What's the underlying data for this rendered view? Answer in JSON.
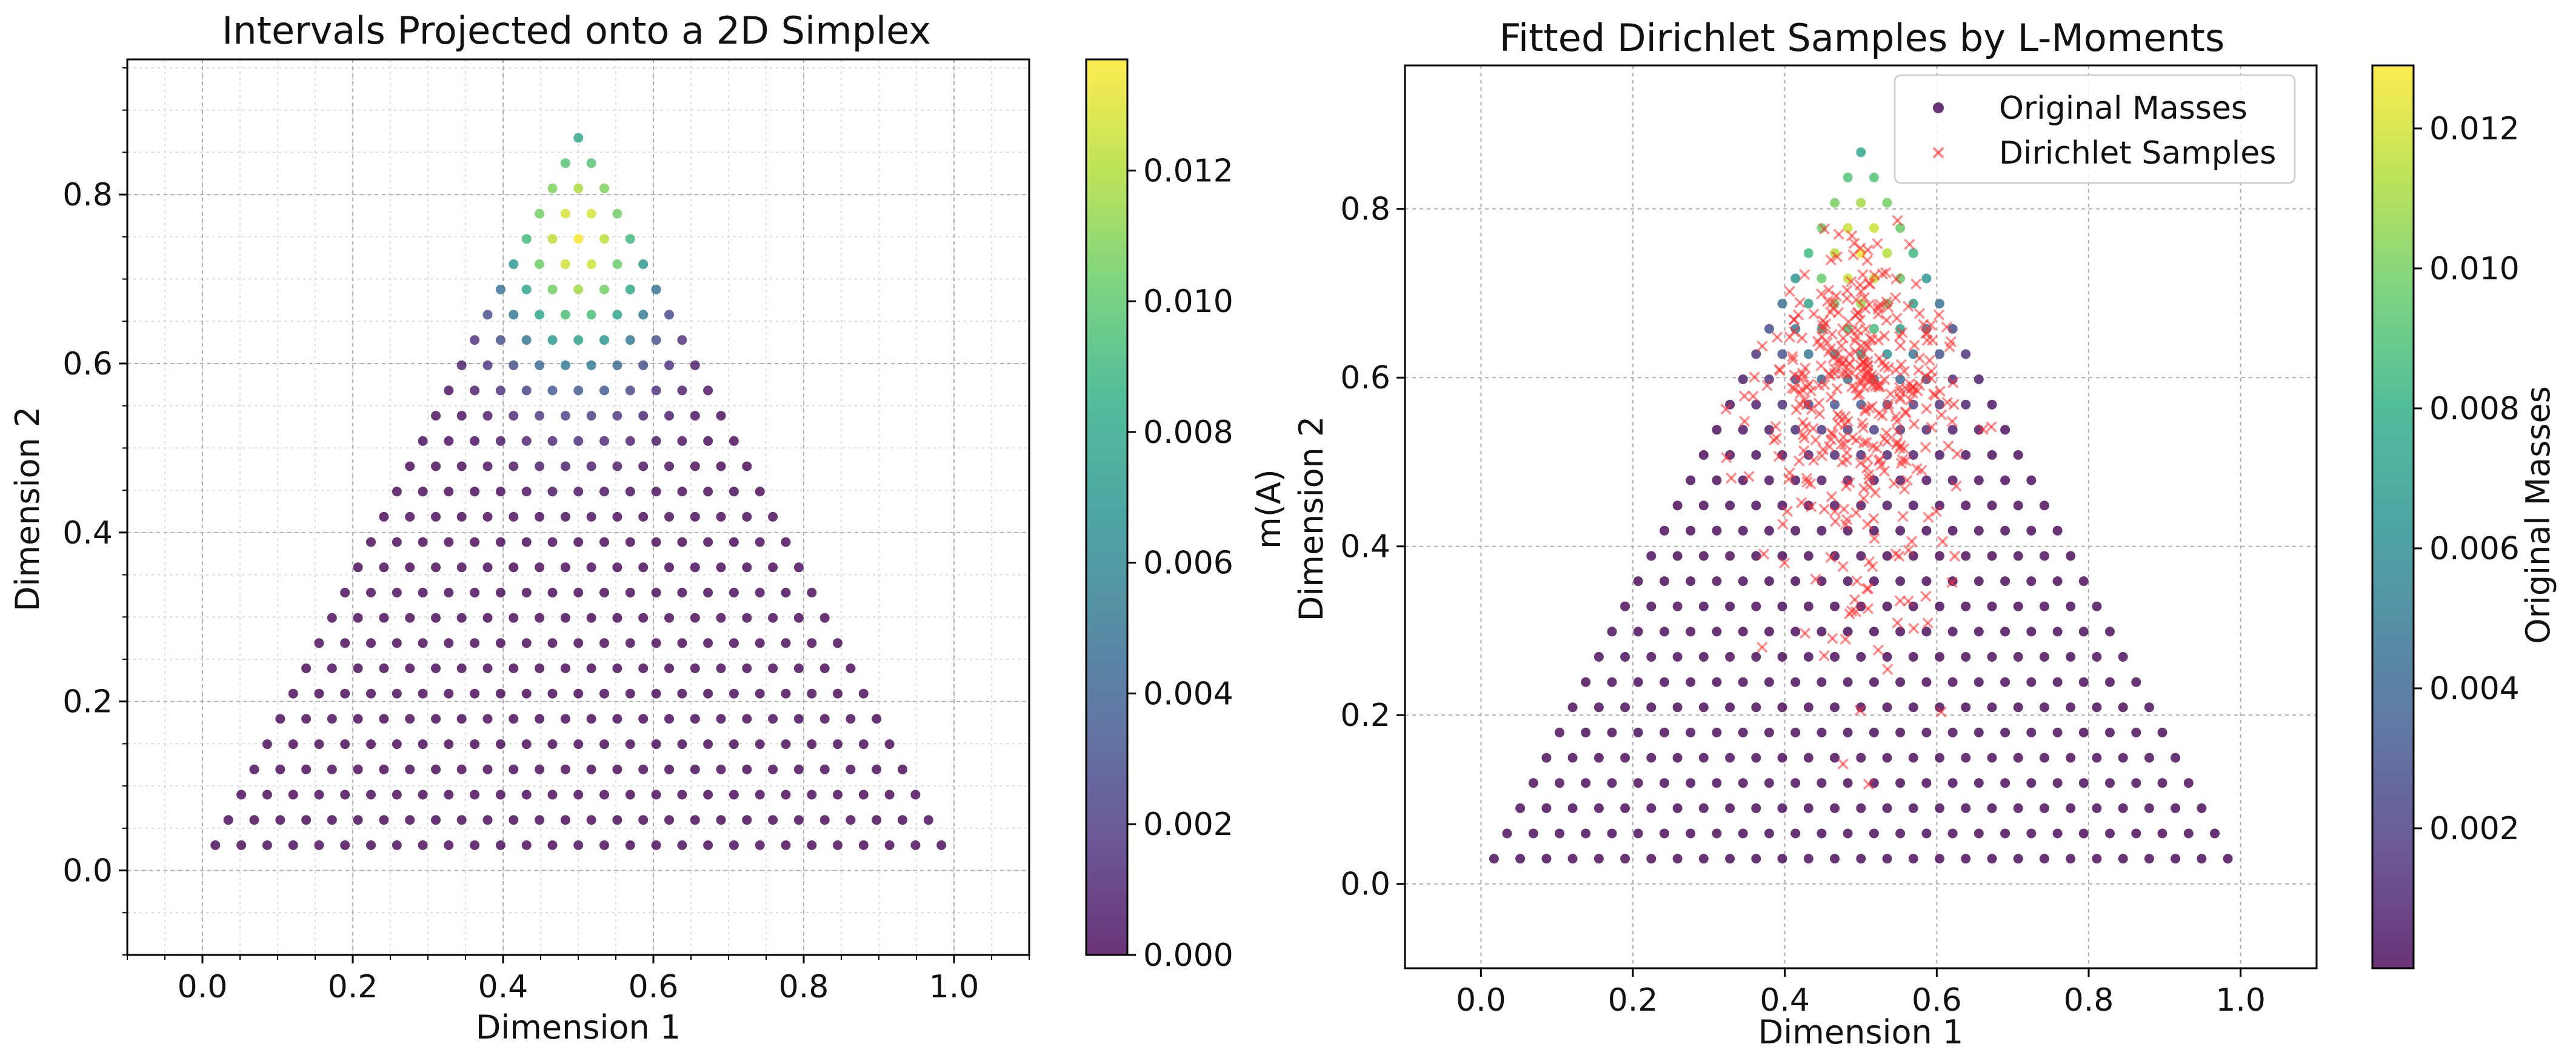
{
  "chart_data": [
    {
      "type": "scatter",
      "title": "Intervals Projected onto a 2D Simplex",
      "xlabel": "Dimension 1",
      "ylabel": "Dimension 2",
      "xlim": [
        -0.1,
        1.1
      ],
      "ylim": [
        -0.1,
        0.96
      ],
      "xticks": [
        0.0,
        0.2,
        0.4,
        0.6,
        0.8,
        1.0
      ],
      "xtick_labels": [
        "0.0",
        "0.2",
        "0.4",
        "0.6",
        "0.8",
        "1.0"
      ],
      "yticks": [
        0.0,
        0.2,
        0.4,
        0.6,
        0.8
      ],
      "ytick_labels": [
        "0.0",
        "0.2",
        "0.4",
        "0.6",
        "0.8"
      ],
      "grid": true,
      "minor_grid": true,
      "series": [
        {
          "name": "m(A)",
          "grid_rows": 29,
          "x_start": 0.0172,
          "x_step": 0.0345,
          "y_start": 0.0299,
          "y_step": 0.0299,
          "color_value_peak": 0.0135,
          "color_value_apex": [
            0.5,
            0.75
          ]
        }
      ],
      "colorbar": {
        "label": "m(A)",
        "min": 0.0,
        "max": 0.0137,
        "ticks": [
          0.0,
          0.002,
          0.004,
          0.006,
          0.008,
          0.01,
          0.012
        ],
        "tick_labels": [
          "0.000",
          "0.002",
          "0.004",
          "0.006",
          "0.008",
          "0.010",
          "0.012"
        ]
      }
    },
    {
      "type": "scatter",
      "title": "Fitted Dirichlet Samples by L-Moments",
      "xlabel": "Dimension 1",
      "ylabel": "Dimension 2",
      "xlim": [
        -0.1,
        1.1
      ],
      "ylim": [
        -0.1,
        0.97
      ],
      "xticks": [
        0.0,
        0.2,
        0.4,
        0.6,
        0.8,
        1.0
      ],
      "xtick_labels": [
        "0.0",
        "0.2",
        "0.4",
        "0.6",
        "0.8",
        "1.0"
      ],
      "yticks": [
        0.0,
        0.2,
        0.4,
        0.6,
        0.8
      ],
      "ytick_labels": [
        "0.0",
        "0.2",
        "0.4",
        "0.6",
        "0.8"
      ],
      "grid": true,
      "legend": {
        "position": "top-right",
        "entries": [
          "Original Masses",
          "Dirichlet Samples"
        ]
      },
      "series": [
        {
          "name": "Original Masses",
          "grid_rows": 29,
          "x_start": 0.0172,
          "x_step": 0.0345,
          "y_start": 0.0299,
          "y_step": 0.0299,
          "color_value_peak": 0.0125,
          "color_value_apex": [
            0.5,
            0.75
          ]
        },
        {
          "name": "Dirichlet Samples",
          "color": "#ff3030",
          "count": 380,
          "center": [
            0.5,
            0.62
          ],
          "spread": [
            0.075,
            0.11
          ],
          "x_range": [
            0.28,
            0.72
          ],
          "y_range": [
            0.1,
            0.83
          ]
        }
      ],
      "colorbar": {
        "label": "Original Masses",
        "min": 0.0,
        "max": 0.0129,
        "ticks": [
          0.002,
          0.004,
          0.006,
          0.008,
          0.01,
          0.012
        ],
        "tick_labels": [
          "0.002",
          "0.004",
          "0.006",
          "0.008",
          "0.010",
          "0.012"
        ]
      }
    }
  ]
}
